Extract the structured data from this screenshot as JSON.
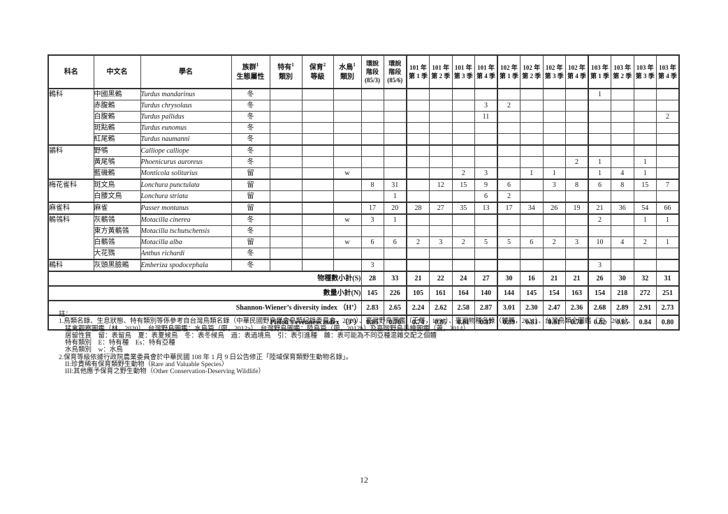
{
  "page": {
    "number": "12"
  },
  "table": {
    "headers": {
      "family": "科名",
      "chinese_name": "中文名",
      "scientific_name": "學名",
      "population": {
        "t": "族群",
        "sup": "1",
        "t2": "生態屬性"
      },
      "endemic": {
        "t": "特有",
        "sup": "1",
        "t2": "類別"
      },
      "conservation": {
        "t": "保育",
        "sup": "2",
        "t2": "等級"
      },
      "waterbird": {
        "t": "水鳥",
        "sup": "1",
        "t2": "類別"
      },
      "eia1": {
        "l1": "環說",
        "l2": "階段",
        "l3": "(85/3)"
      },
      "eia2": {
        "l1": "環說",
        "l2": "階段",
        "l3": "(85/6)"
      },
      "quarters": [
        {
          "y": "101 年",
          "q": "第 1 季"
        },
        {
          "y": "101 年",
          "q": "第 2 季"
        },
        {
          "y": "101 年",
          "q": "第 3 季"
        },
        {
          "y": "101 年",
          "q": "第 4 季"
        },
        {
          "y": "102 年",
          "q": "第 1 季"
        },
        {
          "y": "102 年",
          "q": "第 2 季"
        },
        {
          "y": "102 年",
          "q": "第 3 季"
        },
        {
          "y": "102 年",
          "q": "第 4 季"
        },
        {
          "y": "103 年",
          "q": "第 1 季"
        },
        {
          "y": "103 年",
          "q": "第 2 季"
        },
        {
          "y": "103 年",
          "q": "第 3 季"
        },
        {
          "y": "103 年",
          "q": "第 4 季"
        }
      ]
    },
    "rows": [
      {
        "family": "鶇科",
        "fspan": 5,
        "name": "中國黑鶇",
        "sci": "Turdus mandarinus",
        "eco": "冬",
        "end": "",
        "cons": "",
        "water": "",
        "vals": [
          "",
          "",
          "",
          "",
          "",
          "",
          "",
          "",
          "",
          "",
          "1",
          "",
          "",
          ""
        ]
      },
      {
        "name": "赤腹鶇",
        "sci": "Turdus chrysolaus",
        "eco": "冬",
        "end": "",
        "cons": "",
        "water": "",
        "vals": [
          "",
          "",
          "",
          "",
          "",
          "3",
          "2",
          "",
          "",
          "",
          "",
          "",
          "",
          ""
        ]
      },
      {
        "name": "白腹鶇",
        "sci": "Turdus pallidus",
        "eco": "冬",
        "end": "",
        "cons": "",
        "water": "",
        "vals": [
          "",
          "",
          "",
          "",
          "",
          "11",
          "",
          "",
          "",
          "",
          "",
          "",
          "",
          "2"
        ]
      },
      {
        "name": "斑點鶇",
        "sci": "Turdus eunomus",
        "eco": "冬",
        "end": "",
        "cons": "",
        "water": "",
        "vals": [
          "",
          "",
          "",
          "",
          "",
          "",
          "",
          "",
          "",
          "",
          "",
          "",
          "",
          ""
        ]
      },
      {
        "name": "紅尾鶇",
        "sci": "Turdus naumanni",
        "eco": "冬",
        "end": "",
        "cons": "",
        "water": "",
        "vals": [
          "",
          "",
          "",
          "",
          "",
          "",
          "",
          "",
          "",
          "",
          "",
          "",
          "",
          ""
        ]
      },
      {
        "family": "鶲科",
        "fspan": 3,
        "name": "野鴝",
        "sci": "Calliope calliope",
        "eco": "冬",
        "end": "",
        "cons": "",
        "water": "",
        "vals": [
          "",
          "",
          "",
          "",
          "",
          "",
          "",
          "",
          "",
          "",
          "",
          "",
          "",
          ""
        ]
      },
      {
        "name": "黃尾鴝",
        "sci": "Phoenicurus auroreus",
        "eco": "冬",
        "end": "",
        "cons": "",
        "water": "",
        "vals": [
          "",
          "",
          "",
          "",
          "",
          "",
          "",
          "",
          "",
          "2",
          "1",
          "",
          "1",
          ""
        ]
      },
      {
        "name": "藍磯鶇",
        "sci": "Monticola solitarius",
        "eco": "留",
        "end": "",
        "cons": "",
        "water": "w",
        "vals": [
          "",
          "",
          "",
          "",
          "2",
          "3",
          "",
          "1",
          "1",
          "",
          "1",
          "4",
          "1",
          ""
        ]
      },
      {
        "family": "梅花雀科",
        "fspan": 2,
        "name": "斑文鳥",
        "sci": "Lonchura punctulata",
        "eco": "留",
        "end": "",
        "cons": "",
        "water": "",
        "vals": [
          "8",
          "31",
          "",
          "12",
          "15",
          "9",
          "6",
          "",
          "3",
          "8",
          "6",
          "8",
          "15",
          "7"
        ]
      },
      {
        "name": "白腰文鳥",
        "sci": "Lonchura striata",
        "eco": "留",
        "end": "",
        "cons": "",
        "water": "",
        "vals": [
          "",
          "1",
          "",
          "",
          "",
          "6",
          "2",
          "",
          "",
          "",
          "",
          "",
          "",
          ""
        ]
      },
      {
        "family": "麻雀科",
        "fspan": 1,
        "name": "麻雀",
        "sci": "Passer montanus",
        "eco": "留",
        "end": "",
        "cons": "",
        "water": "",
        "vals": [
          "17",
          "20",
          "28",
          "27",
          "35",
          "13",
          "17",
          "34",
          "26",
          "19",
          "21",
          "36",
          "54",
          "66"
        ]
      },
      {
        "family": "鶺鴒科",
        "fspan": 4,
        "name": "灰鶺鴒",
        "sci": "Motacilla cinerea",
        "eco": "冬",
        "end": "",
        "cons": "",
        "water": "w",
        "vals": [
          "3",
          "1",
          "",
          "",
          "",
          "",
          "",
          "",
          "",
          "",
          "2",
          "",
          "1",
          "1"
        ]
      },
      {
        "name": "東方黃鶺鴒",
        "sci": "Motacilla tschutschensis",
        "eco": "冬",
        "end": "",
        "cons": "",
        "water": "",
        "vals": [
          "",
          "",
          "",
          "",
          "",
          "",
          "",
          "",
          "",
          "",
          "",
          "",
          "",
          ""
        ]
      },
      {
        "name": "白鶺鴒",
        "sci": "Motacilla alba",
        "eco": "留",
        "end": "",
        "cons": "",
        "water": "w",
        "vals": [
          "6",
          "6",
          "2",
          "3",
          "2",
          "5",
          "5",
          "6",
          "2",
          "3",
          "10",
          "4",
          "2",
          "1"
        ]
      },
      {
        "name": "大花鷚",
        "sci": "Anthus richardi",
        "eco": "冬",
        "end": "",
        "cons": "",
        "water": "",
        "vals": [
          "",
          "",
          "",
          "",
          "",
          "",
          "",
          "",
          "",
          "",
          "",
          "",
          "",
          ""
        ]
      },
      {
        "family": "鵐科",
        "fspan": 1,
        "name": "灰頭黑臉鵐",
        "sci": "Emberiza spodocephala",
        "eco": "冬",
        "end": "",
        "cons": "",
        "water": "",
        "vals": [
          "3",
          "",
          "",
          "",
          "",
          "",
          "",
          "",
          "",
          "",
          "3",
          "",
          "",
          ""
        ]
      }
    ],
    "summary": [
      {
        "label": "物種數小計(S)",
        "vals": [
          "28",
          "33",
          "21",
          "22",
          "24",
          "27",
          "30",
          "16",
          "21",
          "21",
          "26",
          "30",
          "32",
          "31"
        ]
      },
      {
        "label": "數量小計(N)",
        "vals": [
          "145",
          "226",
          "105",
          "161",
          "164",
          "140",
          "144",
          "145",
          "154",
          "163",
          "154",
          "218",
          "272",
          "251"
        ]
      },
      {
        "label": "Shannon-Wiener’s diversity index （H’）",
        "vals": [
          "2.83",
          "2.65",
          "2.24",
          "2.62",
          "2.58",
          "2.87",
          "3.01",
          "2.30",
          "2.47",
          "2.36",
          "2.68",
          "2.89",
          "2.91",
          "2.73"
        ]
      },
      {
        "label": "Pielou’s evenness index （J’）",
        "vals": [
          "0.85",
          "0.76",
          "0.74",
          "0.85",
          "0.81",
          "0.87",
          "0.89",
          "0.83",
          "0.81",
          "0.78",
          "0.82",
          "0.85",
          "0.84",
          "0.80"
        ]
      }
    ]
  },
  "notes": {
    "heading": "註：",
    "items": [
      {
        "indent": 0,
        "text": "1.鳥類名錄、生息狀態、特有類別等係參考自台灣鳥類名錄（中華民國野鳥學會鳥類紀錄委員會，2020）、臺灣野鳥圖鑑（王等，1991）、臺灣物種名錄（鍾等，2021）、台灣鳥類全圖鑑（方，2010）、"
      },
      {
        "indent": 1,
        "text": "猛禽觀察圖鑑（林，2020）、台灣野鳥圖鑑：水鳥篇（廖，2012a）、台灣野鳥圖鑑：陸鳥篇（廖，2012b）及臺灣野鳥手繪圖鑑（蕭，2014）"
      },
      {
        "indent": 1,
        "text": "居留性質　留：表留鳥　夏：表夏候鳥　冬：表冬候鳥　過：表過境鳥　引：表引進種　雜：表可能為不同亞種混雜交配之個體"
      },
      {
        "indent": 1,
        "text": "特有類別　E：特有種　Es：特有亞種"
      },
      {
        "indent": 1,
        "text": "水鳥類別　w：水鳥"
      },
      {
        "indent": 0,
        "text": "2.保育等級依據行政院農業委員會於中華民國 108 年 1 月 9 日公告修正「陸域保育類野生動物名錄」。"
      },
      {
        "indent": 1,
        "text": "II:珍貴稀有保育類野生動物（Rare and Valuable Species）"
      },
      {
        "indent": 1,
        "text": "III:其他應予保育之野生動物（Other Conservation-Deserving Wildlife）"
      }
    ]
  }
}
